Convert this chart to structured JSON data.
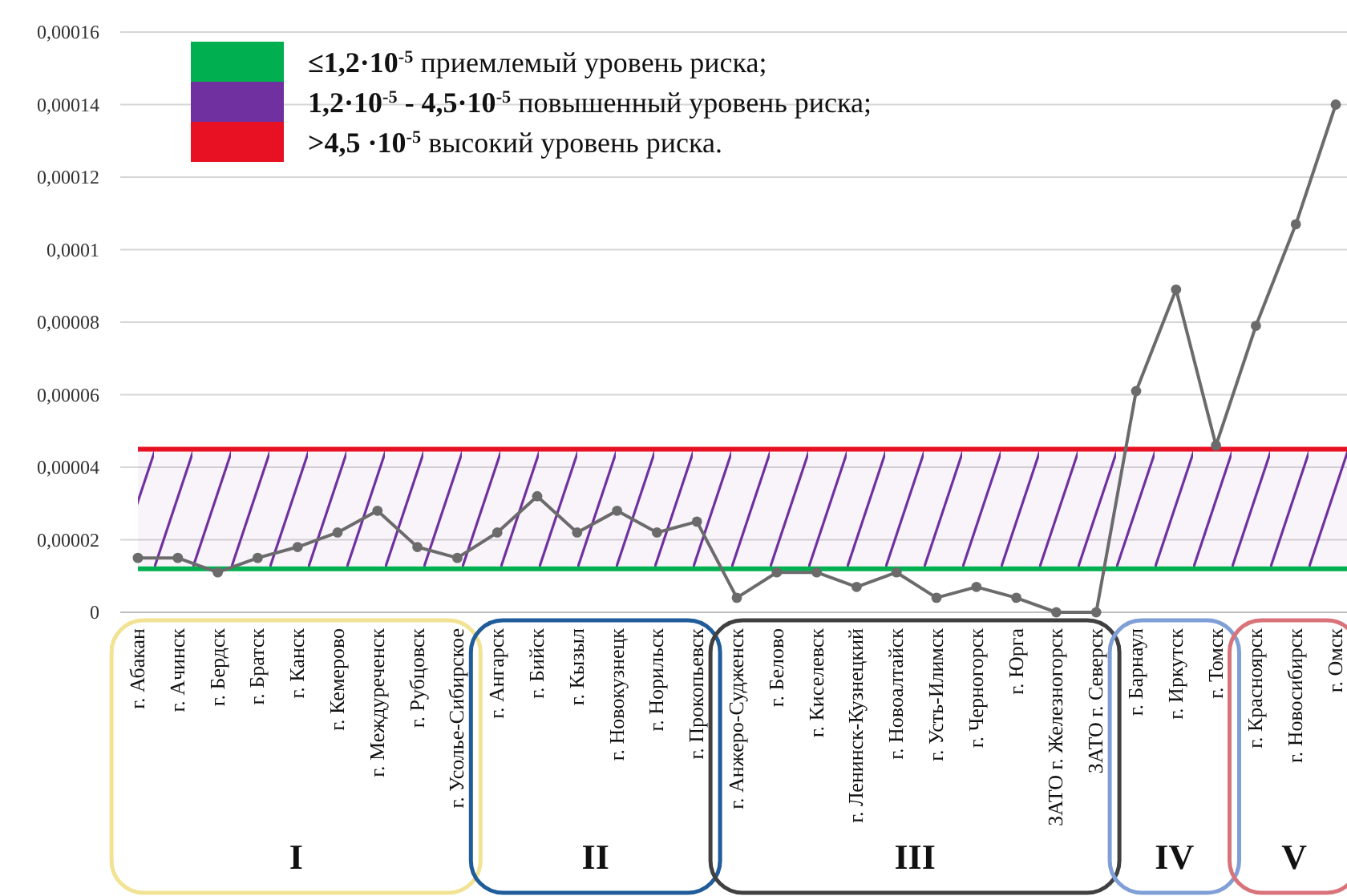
{
  "chart_data": {
    "type": "line",
    "categories": [
      "г. Абакан",
      "г. Ачинск",
      "г. Бердск",
      "г. Братск",
      "г. Канск",
      "г. Кемерово",
      "г. Междуреченск",
      "г. Рубцовск",
      "г. Усолье-Сибирское",
      "г. Ангарск",
      "г. Бийск",
      "г. Кызыл",
      "г. Новокузнецк",
      "г. Норильск",
      "г. Прокопьевск",
      "г. Анжеро-Судженск",
      "г. Белово",
      "г. Киселевск",
      "г. Ленинск-Кузнецкий",
      "г. Новоалтайск",
      "г. Усть-Илимск",
      "г. Черногорск",
      "г. Юрга",
      "ЗАТО г. Железногорск",
      "ЗАТО г. Северск",
      "г. Барнаул",
      "г. Иркутск",
      "г. Томск",
      "г. Красноярск",
      "г. Новосибирск",
      "г. Омск"
    ],
    "series": [
      {
        "color": "#6b6b6b",
        "values": [
          1.5e-05,
          1.5e-05,
          1.1e-05,
          1.5e-05,
          1.8e-05,
          2.2e-05,
          2.8e-05,
          1.8e-05,
          1.5e-05,
          2.2e-05,
          3.2e-05,
          2.2e-05,
          2.8e-05,
          2.2e-05,
          2.5e-05,
          4e-06,
          1.1e-05,
          1.1e-05,
          7e-06,
          1.1e-05,
          4e-06,
          7e-06,
          4e-06,
          0,
          0,
          6.1e-05,
          8.9e-05,
          4.6e-05,
          7.9e-05,
          0.000107,
          0.00014
        ]
      }
    ],
    "ylim": [
      0,
      0.00016
    ],
    "yticks": [
      0,
      {
        "value": 2e-05,
        "label": "0,00002"
      },
      {
        "value": 4e-05,
        "label": "0,00004"
      },
      {
        "value": 6e-05,
        "label": "0,00006"
      },
      {
        "value": 8e-05,
        "label": "0,00008"
      },
      {
        "value": 0.0001,
        "label": "0,0001"
      },
      {
        "value": 0.00012,
        "label": "0,00012"
      },
      {
        "value": 0.00014,
        "label": "0,00014"
      },
      {
        "value": 0.00016,
        "label": "0,00016"
      }
    ],
    "grid": "y",
    "legend": "top left",
    "marker": "circle",
    "line_style": "solid",
    "ref_lines": [
      {
        "axis": "y",
        "value": 1.2e-05,
        "label": "≤1,2·10$^{-5}$ приемлемый уровень риска;",
        "color": "#00b050"
      },
      {
        "axis": "y",
        "value": 4.5e-05,
        "label": ">4,5 ·10$^{-5}$ высокий уровень риска.",
        "color": "#e81123"
      }
    ],
    "bands": [
      {
        "axis": "y",
        "from": 1.2e-05,
        "to": 4.5e-05,
        "label": "1,2·10$^{-5}$ - 4,5·10$^{-5}$ повышенный уровень риска;",
        "color": "#7030a0"
      }
    ],
    "annotations": [
      "I",
      "II",
      "III",
      "IV",
      "V"
    ]
  }
}
